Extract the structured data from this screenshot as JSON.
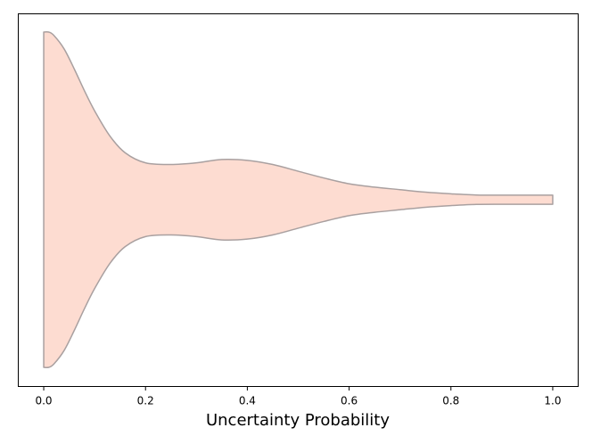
{
  "chart_data": {
    "type": "violin",
    "orientation": "horizontal",
    "title": "",
    "xlabel": "Uncertainty Probability",
    "ylabel": "",
    "xlim": [
      -0.05,
      1.05
    ],
    "xticks": [
      "0.0",
      "0.2",
      "0.4",
      "0.6",
      "0.8",
      "1.0"
    ],
    "yticks": [],
    "grid": false,
    "colors": {
      "fill": "#fddcd1",
      "edge": "#a9a0a0",
      "axis": "#000000"
    },
    "density_profile": {
      "x": [
        0.0,
        0.01,
        0.02,
        0.04,
        0.06,
        0.08,
        0.1,
        0.13,
        0.16,
        0.2,
        0.25,
        0.3,
        0.35,
        0.4,
        0.45,
        0.5,
        0.55,
        0.6,
        0.65,
        0.7,
        0.75,
        0.8,
        0.85,
        0.9,
        0.95,
        1.0
      ],
      "half_width": [
        1.0,
        1.0,
        0.98,
        0.9,
        0.78,
        0.65,
        0.53,
        0.38,
        0.28,
        0.22,
        0.21,
        0.22,
        0.24,
        0.235,
        0.21,
        0.17,
        0.13,
        0.095,
        0.075,
        0.06,
        0.045,
        0.035,
        0.028,
        0.027,
        0.027,
        0.027
      ]
    }
  }
}
